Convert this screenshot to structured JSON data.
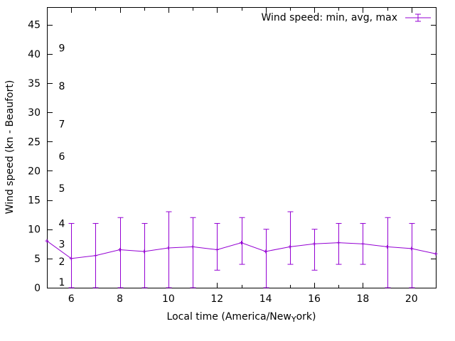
{
  "chart_data": {
    "type": "line",
    "title": "",
    "legend": {
      "label": "Wind speed: min, avg, max"
    },
    "xlabel": {
      "pre": "Local time (America/New",
      "sub": "Y",
      "post": "ork)"
    },
    "ylabel": "Wind speed (kn - Beaufort)",
    "x_range": [
      5,
      21
    ],
    "y_range": [
      0,
      48
    ],
    "x_major_ticks": [
      6,
      8,
      10,
      12,
      14,
      16,
      18,
      20
    ],
    "x_minor_ticks": [
      5,
      7,
      9,
      11,
      13,
      15,
      17,
      19,
      21
    ],
    "y_major_ticks": [
      0,
      5,
      10,
      15,
      20,
      25,
      30,
      35,
      40,
      45
    ],
    "beaufort_scale": [
      {
        "label": "1",
        "kn": 1
      },
      {
        "label": "2",
        "kn": 4.5
      },
      {
        "label": "3",
        "kn": 7.5
      },
      {
        "label": "4",
        "kn": 11
      },
      {
        "label": "5",
        "kn": 17
      },
      {
        "label": "6",
        "kn": 22.5
      },
      {
        "label": "7",
        "kn": 28
      },
      {
        "label": "8",
        "kn": 34.5
      },
      {
        "label": "9",
        "kn": 41
      }
    ],
    "grid": false,
    "legend_position": "top-right",
    "series": [
      {
        "name": "Wind speed: min, avg, max",
        "color": "#9400d3",
        "points": [
          {
            "x": 5,
            "min": null,
            "avg": 8,
            "max": null
          },
          {
            "x": 6,
            "min": 0,
            "avg": 5,
            "max": 11
          },
          {
            "x": 7,
            "min": 0,
            "avg": 5.5,
            "max": 11
          },
          {
            "x": 8,
            "min": 0,
            "avg": 6.5,
            "max": 12
          },
          {
            "x": 9,
            "min": 0,
            "avg": 6.2,
            "max": 11
          },
          {
            "x": 10,
            "min": 0,
            "avg": 6.8,
            "max": 13
          },
          {
            "x": 11,
            "min": 0,
            "avg": 7,
            "max": 12
          },
          {
            "x": 12,
            "min": 3,
            "avg": 6.5,
            "max": 11
          },
          {
            "x": 13,
            "min": 4,
            "avg": 7.7,
            "max": 12
          },
          {
            "x": 14,
            "min": 0,
            "avg": 6.2,
            "max": 10
          },
          {
            "x": 15,
            "min": 4,
            "avg": 7,
            "max": 13
          },
          {
            "x": 16,
            "min": 3,
            "avg": 7.5,
            "max": 10
          },
          {
            "x": 17,
            "min": 4,
            "avg": 7.7,
            "max": 11
          },
          {
            "x": 18,
            "min": 4,
            "avg": 7.5,
            "max": 11
          },
          {
            "x": 19,
            "min": 0,
            "avg": 7,
            "max": 12
          },
          {
            "x": 20,
            "min": 0,
            "avg": 6.7,
            "max": 11
          },
          {
            "x": 21,
            "min": null,
            "avg": 5.8,
            "max": null
          }
        ]
      }
    ]
  }
}
